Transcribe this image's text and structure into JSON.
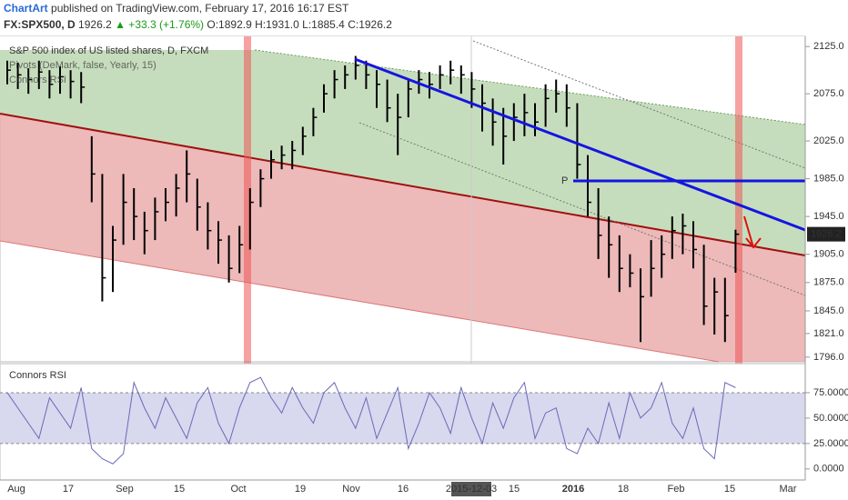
{
  "header": {
    "author": "ChartArt",
    "published": "published on TradingView.com, February 17, 2016 16:17 EST",
    "symbol": "FX:SPX500, D",
    "price": "1926.2",
    "change": "▲ +33.3 (+1.76%)",
    "open": "O:1892.9",
    "high": "H:1931.0",
    "low": "L:1885.4",
    "close": "C:1926.2"
  },
  "chart_data": [
    {
      "type": "ohlc",
      "title": "S&P 500 index of US listed shares, D, FXCM",
      "legend": [
        "Pivots (DeMark, false, Yearly, 15)",
        "Connors RSI"
      ],
      "pivot_label": "P",
      "xtick_labels": [
        "Aug",
        "17",
        "Sep",
        "15",
        "Oct",
        "19",
        "Nov",
        "16",
        "2015-12-03",
        "15",
        "2016",
        "18",
        "Feb",
        "15",
        "Mar"
      ],
      "ylim": [
        1792,
        2130
      ],
      "yticks": [
        {
          "value": 2125,
          "label": "2125.0"
        },
        {
          "value": 2075,
          "label": "2075.0"
        },
        {
          "value": 2025,
          "label": "2025.0"
        },
        {
          "value": 1985,
          "label": "1985.0"
        },
        {
          "value": 1945,
          "label": "1945.0"
        },
        {
          "value": 1905,
          "label": "1905.0"
        },
        {
          "value": 1875,
          "label": "1875.0"
        },
        {
          "value": 1845,
          "label": "1845.0"
        },
        {
          "value": 1821,
          "label": "1821.0"
        },
        {
          "value": 1796,
          "label": "1796.0"
        }
      ],
      "color": "#000000",
      "high": [
        2110,
        2108,
        2102,
        2110,
        2100,
        2104,
        2100,
        2098,
        2030,
        1990,
        1935,
        1990,
        1975,
        1950,
        1965,
        1975,
        1990,
        2015,
        1985,
        1960,
        1940,
        1925,
        1935,
        1975,
        1995,
        2015,
        2020,
        2025,
        2040,
        2060,
        2085,
        2100,
        2105,
        2115,
        2110,
        2100,
        2090,
        2075,
        2090,
        2100,
        2098,
        2105,
        2110,
        2105,
        2098,
        2085,
        2070,
        2060,
        2065,
        2075,
        2065,
        2085,
        2090,
        2085,
        2065,
        2010,
        1975,
        1945,
        1925,
        1905,
        1890,
        1920,
        1925,
        1945,
        1948,
        1940,
        1915,
        1880,
        1880,
        1931
      ],
      "low": [
        2085,
        2080,
        2075,
        2080,
        2070,
        2075,
        2070,
        2065,
        1960,
        1855,
        1865,
        1915,
        1920,
        1905,
        1920,
        1940,
        1945,
        1960,
        1930,
        1910,
        1895,
        1875,
        1885,
        1910,
        1955,
        1985,
        1995,
        1995,
        2010,
        2030,
        2055,
        2070,
        2080,
        2090,
        2080,
        2060,
        2045,
        2010,
        2050,
        2075,
        2070,
        2080,
        2085,
        2075,
        2060,
        2035,
        2020,
        2000,
        2025,
        2030,
        2030,
        2040,
        2055,
        2040,
        1985,
        1945,
        1900,
        1880,
        1865,
        1870,
        1812,
        1860,
        1880,
        1900,
        1905,
        1890,
        1830,
        1820,
        1812,
        1885.4
      ],
      "close": [
        2100,
        2095,
        2090,
        2098,
        2085,
        2093,
        2088,
        2082,
        1990,
        1880,
        1920,
        1960,
        1945,
        1930,
        1950,
        1960,
        1975,
        1990,
        1955,
        1930,
        1920,
        1890,
        1915,
        1960,
        1985,
        2005,
        2010,
        2015,
        2030,
        2050,
        2075,
        2090,
        2095,
        2105,
        2095,
        2085,
        2060,
        2050,
        2080,
        2090,
        2085,
        2095,
        2100,
        2095,
        2080,
        2065,
        2045,
        2030,
        2050,
        2055,
        2045,
        2070,
        2075,
        2060,
        2000,
        1960,
        1925,
        1915,
        1890,
        1885,
        1860,
        1890,
        1905,
        1930,
        1935,
        1910,
        1850,
        1865,
        1840,
        1926.2
      ]
    },
    {
      "type": "line",
      "title": "Connors RSI",
      "color": "#6a6ab8",
      "ylim": [
        -10,
        100
      ],
      "yticks": [
        {
          "value": 75,
          "label": "75.0000"
        },
        {
          "value": 50,
          "label": "50.0000"
        },
        {
          "value": 25,
          "label": "25.0000"
        },
        {
          "value": 0,
          "label": "0.0000"
        }
      ],
      "values": [
        75,
        60,
        45,
        30,
        70,
        55,
        40,
        80,
        20,
        10,
        5,
        15,
        85,
        60,
        40,
        70,
        50,
        30,
        65,
        80,
        45,
        25,
        60,
        85,
        90,
        70,
        55,
        80,
        60,
        45,
        75,
        85,
        60,
        40,
        70,
        30,
        55,
        80,
        20,
        45,
        75,
        60,
        35,
        80,
        50,
        25,
        65,
        40,
        70,
        85,
        30,
        55,
        60,
        20,
        15,
        40,
        25,
        65,
        30,
        75,
        50,
        60,
        85,
        45,
        30,
        60,
        20,
        10,
        85,
        80
      ]
    }
  ]
}
